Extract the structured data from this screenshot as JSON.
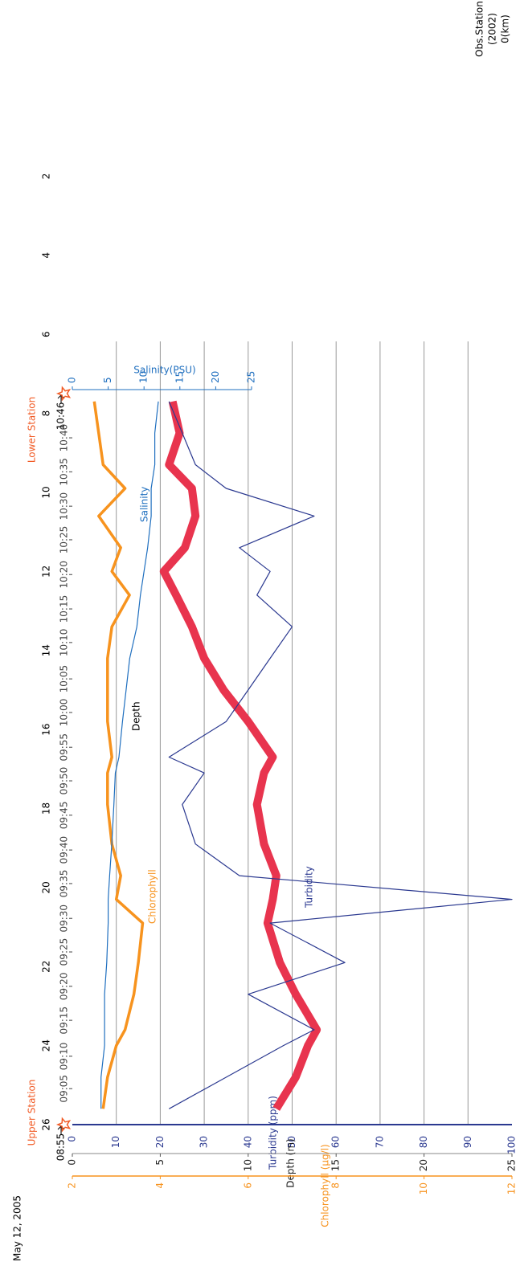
{
  "chart_data": {
    "type": "line",
    "title": "May 12, 2005",
    "x_label_lines": [
      "Obs.Station",
      "(2002)",
      "0(km)"
    ],
    "xlim": [
      26,
      0
    ],
    "xticks": [
      2,
      4,
      6,
      8,
      10,
      12,
      14,
      16,
      18,
      20,
      22,
      24,
      26
    ],
    "upper_station": {
      "label": "Upper Station",
      "time": "08:55",
      "x": 26
    },
    "lower_station": {
      "label": "Lower Station",
      "time": "10:46",
      "x": 7.5
    },
    "time_ticks": [
      {
        "value": 25.09,
        "label": "09:05"
      },
      {
        "value": 24.27,
        "label": "09:10"
      },
      {
        "value": 23.36,
        "label": "09:15"
      },
      {
        "value": 22.5,
        "label": "09:20"
      },
      {
        "value": 21.63,
        "label": "09:25"
      },
      {
        "value": 20.78,
        "label": "09:30"
      },
      {
        "value": 19.9,
        "label": "09:35"
      },
      {
        "value": 19.05,
        "label": "09:40"
      },
      {
        "value": 18.17,
        "label": "09:45"
      },
      {
        "value": 17.3,
        "label": "09:50"
      },
      {
        "value": 16.45,
        "label": "09:55"
      },
      {
        "value": 15.57,
        "label": "10:00"
      },
      {
        "value": 14.72,
        "label": "10:05"
      },
      {
        "value": 13.8,
        "label": "10:10"
      },
      {
        "value": 12.95,
        "label": "10:15"
      },
      {
        "value": 12.08,
        "label": "10:20"
      },
      {
        "value": 11.2,
        "label": "10:25"
      },
      {
        "value": 10.35,
        "label": "10:30"
      },
      {
        "value": 9.48,
        "label": "10:35"
      },
      {
        "value": 8.62,
        "label": "10:40"
      }
    ],
    "grid": true,
    "axes": {
      "depth": {
        "label": "Depth (m)",
        "color": "#222222",
        "ylim": [
          0,
          25
        ],
        "yticks": [
          0,
          5,
          10,
          15,
          20,
          25
        ]
      },
      "turbidity": {
        "label": "Turbidity (ppm)",
        "color": "#2b3990",
        "ylim": [
          0,
          100
        ],
        "yticks": [
          0,
          10,
          20,
          30,
          40,
          50,
          60,
          70,
          80,
          90,
          100
        ]
      },
      "chlorophyll": {
        "label": "Chlorophyll (μg/l)",
        "color": "#f7931e",
        "ylim": [
          2,
          12
        ],
        "yticks": [
          2,
          4,
          6,
          8,
          10,
          12
        ]
      },
      "salinity": {
        "label": "Salinity(PSU)",
        "color": "#1f6fbf",
        "ylim": [
          0,
          25
        ],
        "yticks": [
          0,
          5,
          10,
          15,
          20,
          25
        ]
      }
    },
    "x": [
      25.6,
      24.8,
      24.0,
      23.6,
      22.7,
      21.9,
      20.9,
      20.3,
      19.7,
      18.9,
      17.9,
      17.1,
      16.7,
      15.8,
      15.0,
      14.2,
      13.4,
      12.6,
      12.0,
      11.4,
      10.6,
      9.9,
      9.3,
      8.5,
      7.7
    ],
    "series": [
      {
        "name": "Depth",
        "axis": "depth",
        "color": "#e8344e",
        "values": [
          11.6,
          12.7,
          13.4,
          13.9,
          12.7,
          11.8,
          11.1,
          11.4,
          11.6,
          10.9,
          10.5,
          10.9,
          11.4,
          10.0,
          8.6,
          7.5,
          6.8,
          5.9,
          5.2,
          6.4,
          7.0,
          6.8,
          5.5,
          6.1,
          5.7
        ]
      },
      {
        "name": "Turbidity",
        "axis": "turbidity",
        "color": "#2b3990",
        "values": [
          22,
          35,
          48,
          55,
          40,
          62,
          45,
          100,
          38,
          28,
          25,
          30,
          22,
          35,
          40,
          45,
          50,
          42,
          45,
          38,
          55,
          35,
          28,
          25,
          22
        ]
      },
      {
        "name": "Chlorophyll",
        "axis": "chlorophyll",
        "color": "#f7931e",
        "values": [
          2.7,
          2.8,
          3.0,
          3.2,
          3.4,
          3.5,
          3.6,
          3.0,
          3.1,
          2.9,
          2.8,
          2.8,
          2.9,
          2.8,
          2.8,
          2.8,
          2.9,
          3.3,
          2.9,
          3.1,
          2.6,
          3.2,
          2.7,
          2.6,
          2.5
        ]
      },
      {
        "name": "Salinity",
        "axis": "salinity",
        "color": "#1f6fbf",
        "values": [
          4,
          4,
          4.5,
          4.5,
          4.5,
          4.8,
          5,
          5,
          5.2,
          5.5,
          5.8,
          6,
          6.5,
          7,
          7.5,
          8,
          9,
          9.5,
          10,
          10.5,
          11,
          11,
          11.5,
          11.5,
          12
        ]
      }
    ],
    "station_color": "#f15a24"
  }
}
